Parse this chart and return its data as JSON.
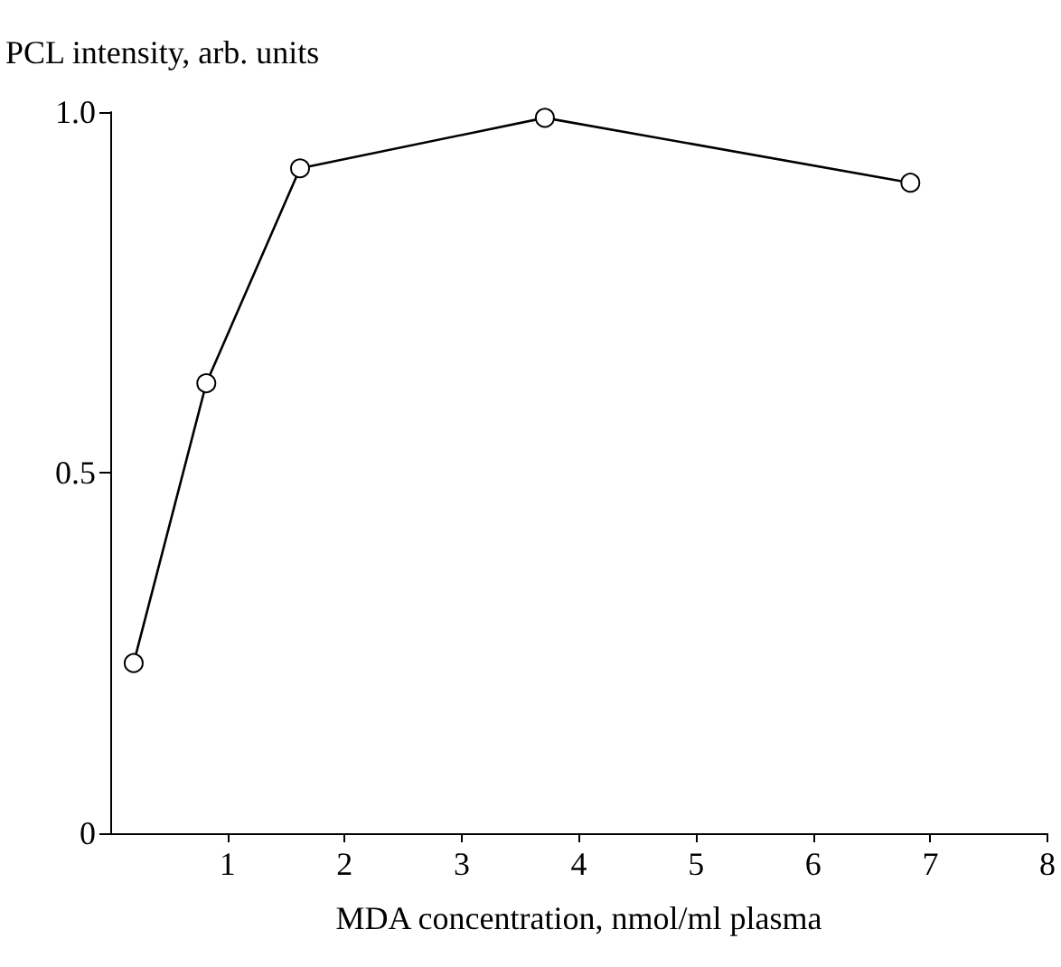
{
  "chart_data": {
    "type": "line",
    "xlabel": "MDA concentration, nmol/ml plasma",
    "ylabel": "PCL intensity, arb. units",
    "x": [
      0.2,
      0.82,
      1.62,
      3.71,
      6.83
    ],
    "series": [
      {
        "color": "#000000",
        "values": [
          0.236,
          0.624,
          0.922,
          0.992,
          0.902
        ]
      }
    ],
    "xlim": [
      0,
      8
    ],
    "xticks": [
      1,
      2,
      3,
      4,
      5,
      6,
      7,
      8
    ],
    "ylim": [
      0,
      1
    ],
    "yticks": [
      0,
      0.5,
      {
        "value": 1,
        "label": "1.0"
      }
    ],
    "marker": "circle",
    "line_style": "solid"
  }
}
